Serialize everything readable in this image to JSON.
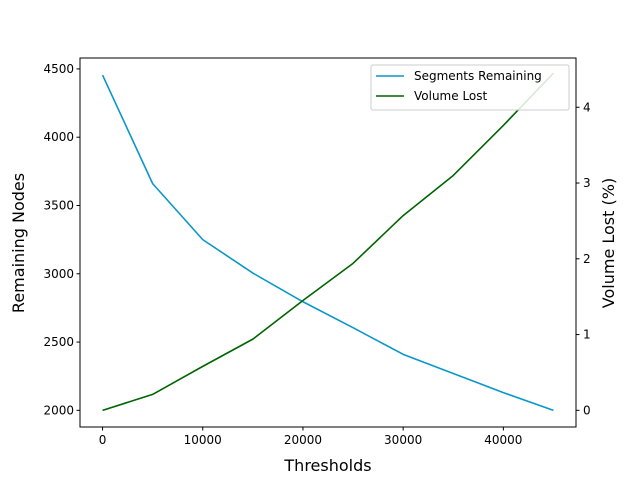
{
  "chart_data": {
    "type": "line",
    "title": "",
    "xlabel": "Thresholds",
    "ylabel": "Remaining Nodes",
    "y2label": "Volume Lost (%)",
    "x": [
      0,
      5000,
      10000,
      15000,
      20000,
      25000,
      30000,
      35000,
      40000,
      45000
    ],
    "xlim": [
      -2250,
      47250
    ],
    "ylim": [
      1878,
      4580
    ],
    "y2lim": [
      -0.22,
      4.65
    ],
    "xticks": [
      0,
      10000,
      20000,
      30000,
      40000
    ],
    "yticks": [
      2000,
      2500,
      3000,
      3500,
      4000,
      4500
    ],
    "y2ticks": [
      0,
      1,
      2,
      3,
      4
    ],
    "grid": false,
    "legend_position": "top-right",
    "series": [
      {
        "name": "Segments Remaining",
        "axis": "left",
        "color": "#0a97c9",
        "values": [
          4455,
          3660,
          3250,
          3005,
          2795,
          2605,
          2410,
          2270,
          2130,
          2000
        ]
      },
      {
        "name": "Volume Lost",
        "axis": "right",
        "color": "#006400",
        "values": [
          0,
          0.21,
          0.58,
          0.94,
          1.45,
          1.94,
          2.57,
          3.1,
          3.76,
          4.45
        ]
      }
    ]
  }
}
